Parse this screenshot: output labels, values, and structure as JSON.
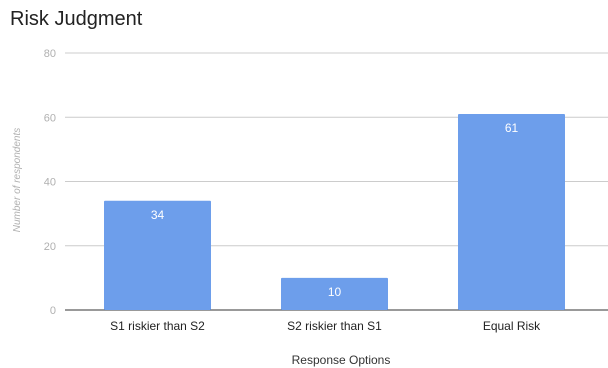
{
  "chart_data": {
    "type": "bar",
    "title": "Risk Judgment",
    "xlabel": "Response Options",
    "ylabel": "Number of respondents",
    "categories": [
      "S1 riskier than S2",
      "S2  riskier than S1",
      "Equal Risk"
    ],
    "values": [
      34,
      10,
      61
    ],
    "data_labels": [
      "34",
      "10",
      "61"
    ],
    "yticks": [
      0,
      20,
      40,
      60,
      80
    ],
    "ylim": [
      0,
      80
    ],
    "grid": true,
    "legend": "none",
    "bar_color": "#6d9eeb"
  }
}
